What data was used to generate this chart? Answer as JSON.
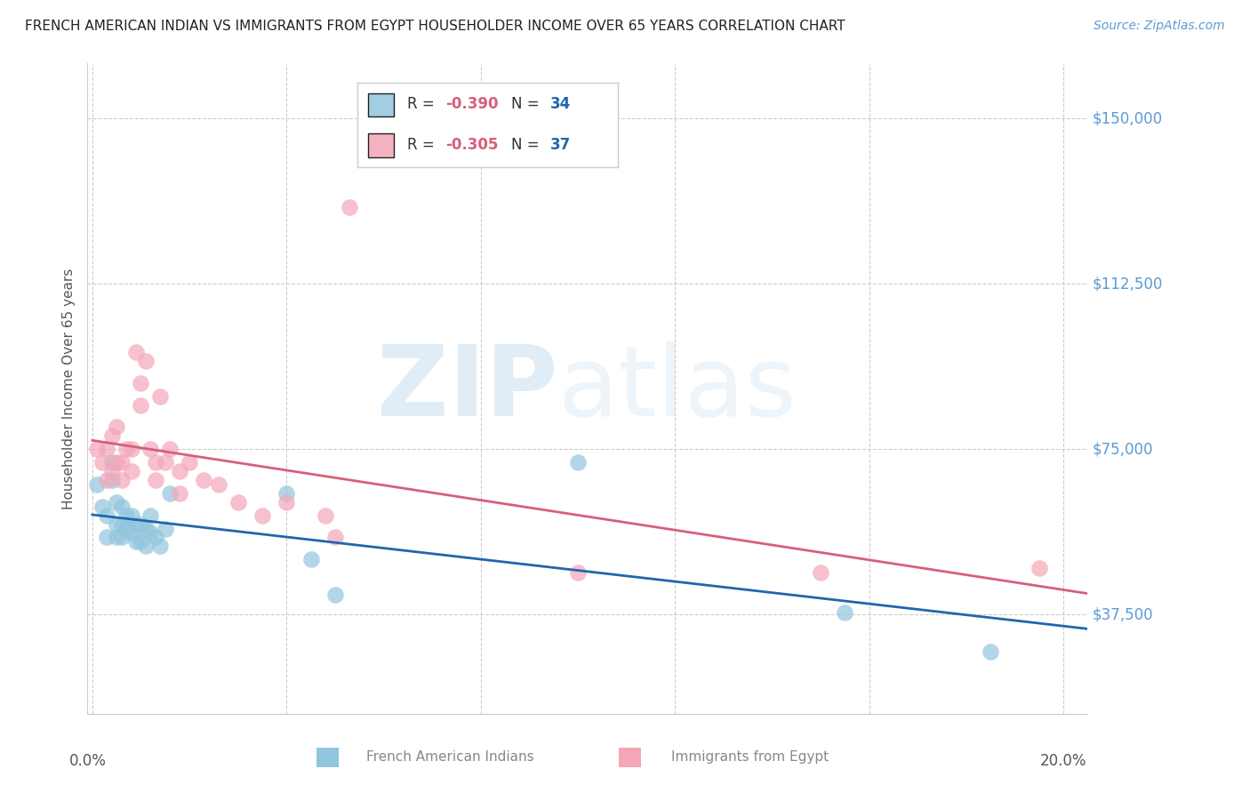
{
  "title": "FRENCH AMERICAN INDIAN VS IMMIGRANTS FROM EGYPT HOUSEHOLDER INCOME OVER 65 YEARS CORRELATION CHART",
  "source": "Source: ZipAtlas.com",
  "ylabel": "Householder Income Over 65 years",
  "ytick_labels": [
    "$150,000",
    "$112,500",
    "$75,000",
    "$37,500"
  ],
  "ytick_values": [
    150000,
    112500,
    75000,
    37500
  ],
  "ymin": 15000,
  "ymax": 162500,
  "xmin": -0.001,
  "xmax": 0.205,
  "watermark_zip": "ZIP",
  "watermark_atlas": "atlas",
  "legend1_r_val": "-0.390",
  "legend1_n_val": "34",
  "legend2_r_val": "-0.305",
  "legend2_n_val": "37",
  "blue_color": "#92c5de",
  "pink_color": "#f4a6b8",
  "blue_line_color": "#2166ac",
  "pink_line_color": "#d6607a",
  "blue_scatter_x": [
    0.001,
    0.002,
    0.003,
    0.003,
    0.004,
    0.004,
    0.005,
    0.005,
    0.005,
    0.006,
    0.006,
    0.006,
    0.007,
    0.007,
    0.008,
    0.008,
    0.009,
    0.009,
    0.01,
    0.01,
    0.011,
    0.011,
    0.012,
    0.012,
    0.013,
    0.014,
    0.015,
    0.016,
    0.04,
    0.045,
    0.05,
    0.1,
    0.155,
    0.185
  ],
  "blue_scatter_y": [
    67000,
    62000,
    60000,
    55000,
    72000,
    68000,
    63000,
    58000,
    55000,
    62000,
    58000,
    55000,
    60000,
    57000,
    60000,
    56000,
    58000,
    54000,
    58000,
    54000,
    57000,
    53000,
    60000,
    56000,
    55000,
    53000,
    57000,
    65000,
    65000,
    50000,
    42000,
    72000,
    38000,
    29000
  ],
  "pink_scatter_x": [
    0.001,
    0.002,
    0.003,
    0.003,
    0.004,
    0.004,
    0.005,
    0.005,
    0.006,
    0.006,
    0.007,
    0.008,
    0.008,
    0.009,
    0.01,
    0.01,
    0.011,
    0.012,
    0.013,
    0.013,
    0.014,
    0.015,
    0.016,
    0.018,
    0.018,
    0.02,
    0.023,
    0.026,
    0.03,
    0.035,
    0.04,
    0.048,
    0.05,
    0.053,
    0.1,
    0.15,
    0.195
  ],
  "pink_scatter_y": [
    75000,
    72000,
    75000,
    68000,
    78000,
    70000,
    80000,
    72000,
    72000,
    68000,
    75000,
    75000,
    70000,
    97000,
    90000,
    85000,
    95000,
    75000,
    72000,
    68000,
    87000,
    72000,
    75000,
    70000,
    65000,
    72000,
    68000,
    67000,
    63000,
    60000,
    63000,
    60000,
    55000,
    130000,
    47000,
    47000,
    48000
  ]
}
